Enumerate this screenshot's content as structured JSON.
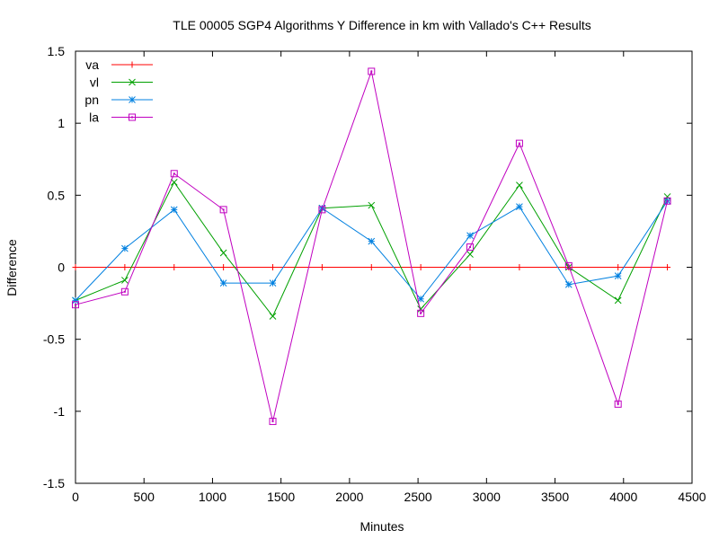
{
  "chart_data": {
    "type": "line",
    "title": "TLE 00005 SGP4 Algorithms Y Difference in km with Vallado's C++ Results",
    "xlabel": "Minutes",
    "ylabel": "Difference",
    "xlim": [
      0,
      4500
    ],
    "ylim": [
      -1.5,
      1.5
    ],
    "x_ticks": [
      0,
      500,
      1000,
      1500,
      2000,
      2500,
      3000,
      3500,
      4000,
      4500
    ],
    "y_ticks": [
      -1.5,
      -1,
      -0.5,
      0,
      0.5,
      1,
      1.5
    ],
    "x_tick_labels": [
      "0",
      "500",
      "1000",
      "1500",
      "2000",
      "2500",
      "3000",
      "3500",
      "4000",
      "4500"
    ],
    "y_tick_labels": [
      "-1.5",
      "-1",
      "-0.5",
      "0",
      "0.5",
      "1",
      "1.5"
    ],
    "grid": false,
    "legend_position": "top-left",
    "x": [
      0,
      360,
      720,
      1080,
      1440,
      1800,
      2160,
      2520,
      2880,
      3240,
      3600,
      3960,
      4320
    ],
    "series": [
      {
        "name": "va",
        "color": "#ff0000",
        "marker": "plus",
        "values": [
          0,
          0,
          0,
          0,
          0,
          0,
          0,
          0,
          0,
          0,
          0,
          0,
          0
        ]
      },
      {
        "name": "vl",
        "color": "#00a000",
        "marker": "cross",
        "values": [
          -0.23,
          -0.09,
          0.59,
          0.1,
          -0.34,
          0.41,
          0.43,
          -0.29,
          0.09,
          0.57,
          0.0,
          -0.23,
          0.49
        ]
      },
      {
        "name": "pn",
        "color": "#0080e0",
        "marker": "asterisk",
        "values": [
          -0.23,
          0.13,
          0.4,
          -0.11,
          -0.11,
          0.41,
          0.18,
          -0.22,
          0.22,
          0.42,
          -0.12,
          -0.06,
          0.46
        ]
      },
      {
        "name": "la",
        "color": "#c000c0",
        "marker": "square",
        "values": [
          -0.26,
          -0.17,
          0.65,
          0.4,
          -1.07,
          0.4,
          1.36,
          -0.32,
          0.14,
          0.86,
          0.01,
          -0.95,
          0.46
        ]
      }
    ]
  }
}
